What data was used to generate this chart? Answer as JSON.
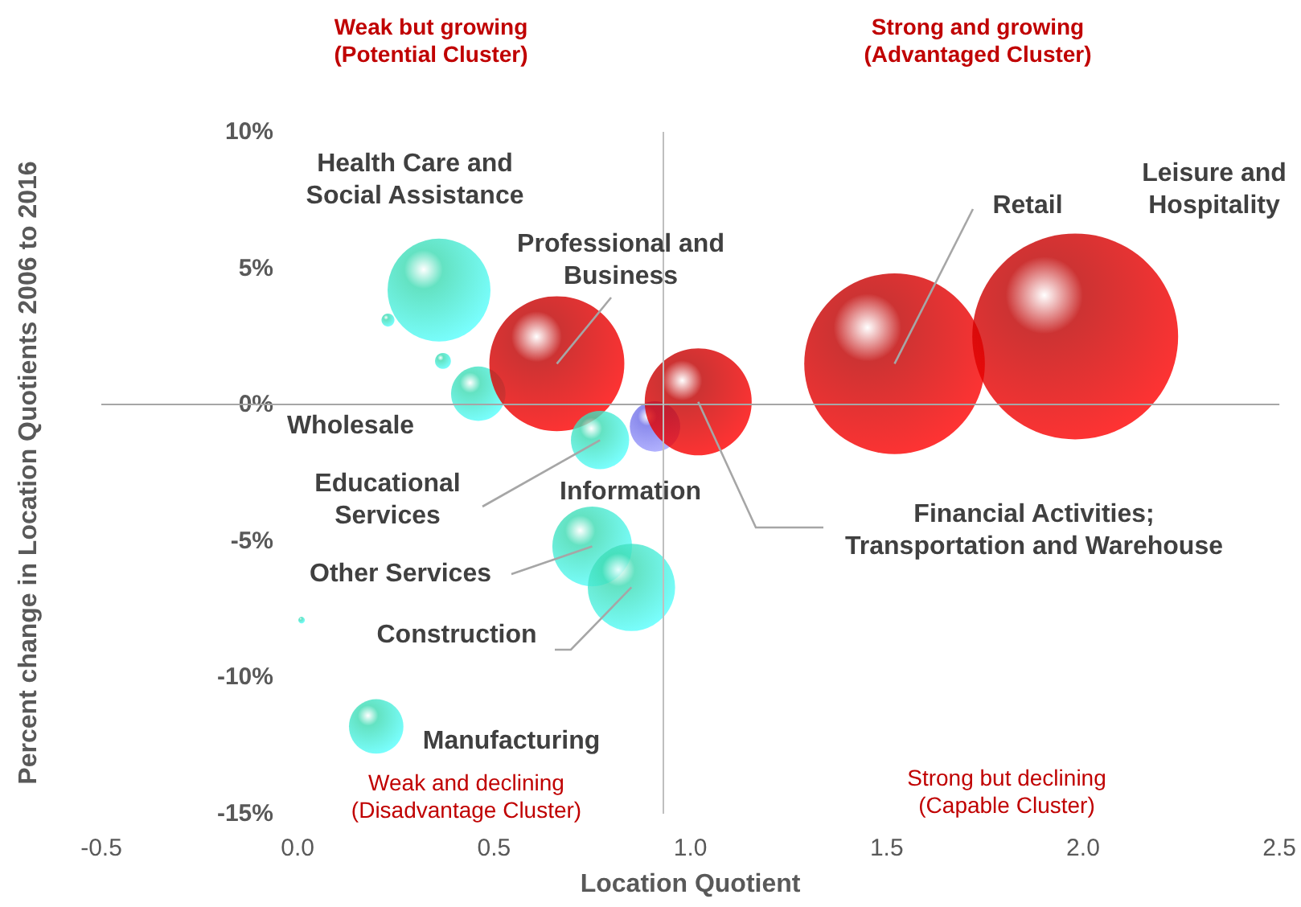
{
  "chart_data": {
    "type": "bubble",
    "xlabel": "Location Quotient",
    "ylabel": "Percent change in Location Quotients 2006 to 2016",
    "x": [
      0.36,
      0.23,
      0.37,
      0.46,
      0.66,
      0.77,
      0.91,
      1.02,
      1.52,
      1.98,
      0.75,
      0.85,
      0.2,
      0.01
    ],
    "values": [
      4.2,
      3.1,
      1.6,
      0.4,
      1.5,
      -1.3,
      -0.8,
      0.1,
      1.5,
      2.5,
      -5.2,
      -6.7,
      -11.8,
      -7.9
    ],
    "sizes": [
      0.25,
      0.004,
      0.006,
      0.07,
      0.43,
      0.08,
      0.06,
      0.27,
      0.77,
      1,
      0.15,
      0.18,
      0.07,
      0.001
    ],
    "colors": [
      "#3ddbb3",
      "#3ddbb3",
      "#3ddbb3",
      "#3ddbb3",
      "#c00000",
      "#3ddbb3",
      "#6f6fe8",
      "#c00000",
      "#c00000",
      "#c00000",
      "#3ddbb3",
      "#3ddbb3",
      "#3ddbb3",
      "#3ddbb3"
    ],
    "xlim": [
      -0.5,
      2.5
    ],
    "xticks": [
      {
        "value": -0.5,
        "label": "-0.5"
      },
      {
        "value": 0,
        "label": "0.0"
      },
      {
        "value": 0.5,
        "label": "0.5"
      },
      {
        "value": 1,
        "label": "1.0"
      },
      {
        "value": 1.5,
        "label": "1.5"
      },
      {
        "value": 2,
        "label": "2.0"
      },
      {
        "value": 2.5,
        "label": "2.5"
      }
    ],
    "ylim": [
      -15,
      10
    ],
    "yticks": [
      {
        "value": -15,
        "label": "-15%"
      },
      {
        "value": -10,
        "label": "-10%"
      },
      {
        "value": -5,
        "label": "-5%"
      },
      {
        "value": 0,
        "label": "0%"
      },
      {
        "value": 5,
        "label": "5%"
      },
      {
        "value": 10,
        "label": "10%"
      }
    ],
    "ref_lines": [
      {
        "axis": "y",
        "value": 0,
        "color": "#a6a6a6"
      },
      {
        "axis": "x",
        "value": 0.93,
        "color": "#bfbfbf"
      }
    ],
    "annotations": [
      "Health Care and\nSocial Assistance",
      {
        "text": "Professional and\nBusiness",
        "x": 0.66,
        "y": 1.5
      },
      "Wholesale",
      {
        "text": "Educational\nServices",
        "x": 0.77,
        "y": -1.3
      },
      "Information",
      {
        "text": "Retail",
        "x": 1.52,
        "y": 1.5
      },
      "Leisure and\nHospitality",
      {
        "text": "Financial Activities;\nTransportation and Warehouse",
        "x": 1.02,
        "y": 0.1
      },
      {
        "text": "Other Services",
        "x": 0.75,
        "y": -5.2
      },
      {
        "text": "Construction",
        "x": 0.85,
        "y": -6.7
      },
      "Manufacturing",
      "Weak but growing\n(Potential Cluster)",
      "Strong and growing\n(Advantaged Cluster)",
      "Weak and declining\n(Disadvantage Cluster)",
      "Strong but declining\n(Capable Cluster)"
    ],
    "grid": false
  }
}
